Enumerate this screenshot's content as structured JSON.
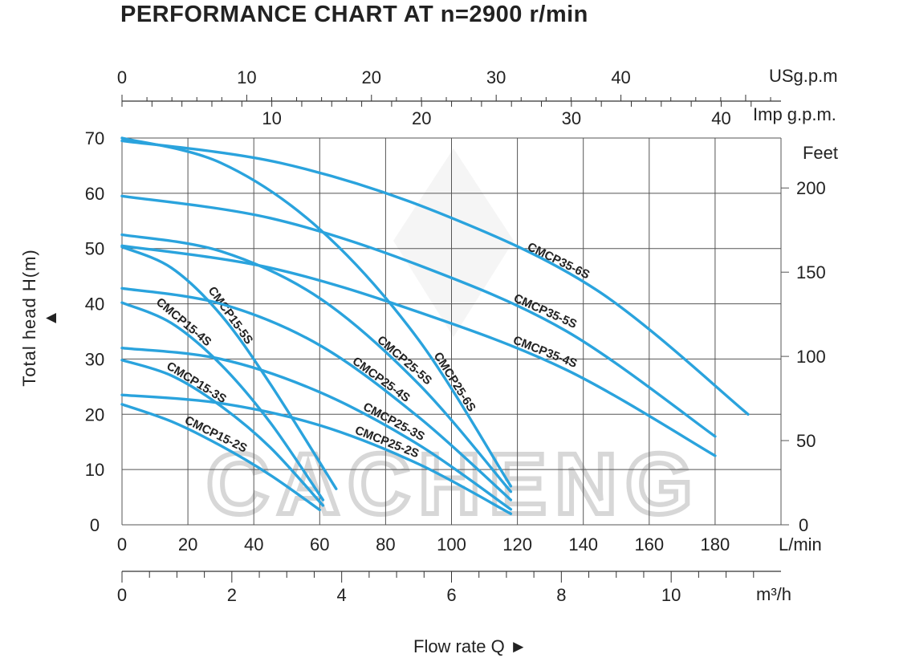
{
  "chart_data": {
    "type": "line",
    "title": "PERFORMANCE CHART AT n=2900 r/min",
    "xlabel": "Flow rate  Q",
    "ylabel": "Total  head H(m)",
    "x_unit": "L/min",
    "xlim": [
      0,
      200
    ],
    "ylim": [
      0,
      70
    ],
    "x_ticks": [
      0,
      20,
      40,
      60,
      80,
      100,
      120,
      140,
      160,
      180
    ],
    "y_ticks": [
      0,
      10,
      20,
      30,
      40,
      50,
      60,
      70
    ],
    "grid": true,
    "secondary_axes": {
      "feet": {
        "label": "Feet",
        "ticks": [
          0,
          50,
          100,
          150,
          200
        ]
      },
      "m3h": {
        "label": "m³/h",
        "ticks": [
          0,
          2,
          4,
          6,
          8,
          10
        ]
      },
      "usgpm": {
        "label": "USg.p.m",
        "ticks": [
          0,
          10,
          20,
          30,
          40
        ]
      },
      "impgpm": {
        "label": "Imp g.p.m.",
        "ticks": [
          10,
          20,
          30,
          40
        ]
      }
    },
    "watermark": "CACHENG",
    "series": [
      {
        "name": "CMCP15-2S",
        "x": [
          0,
          15,
          30,
          45,
          60
        ],
        "y": [
          21.8,
          18.7,
          14.3,
          9,
          2.7
        ]
      },
      {
        "name": "CMCP15-3S",
        "x": [
          0,
          15,
          30,
          45,
          61
        ],
        "y": [
          29.8,
          27,
          21.5,
          14,
          3.5
        ]
      },
      {
        "name": "CMCP15-4S",
        "x": [
          0,
          15,
          30,
          45,
          61
        ],
        "y": [
          40.2,
          36.5,
          29,
          18.5,
          4.5
        ]
      },
      {
        "name": "CMCP15-5S",
        "x": [
          0,
          15,
          30,
          45,
          65
        ],
        "y": [
          50.3,
          46.5,
          38,
          25.5,
          6.5
        ]
      },
      {
        "name": "CMCP25-2S",
        "x": [
          0,
          30,
          60,
          90,
          118
        ],
        "y": [
          23.5,
          22,
          18,
          11,
          2
        ]
      },
      {
        "name": "CMCP25-3S",
        "x": [
          0,
          30,
          60,
          90,
          118
        ],
        "y": [
          32,
          30,
          24,
          14.5,
          2.8
        ]
      },
      {
        "name": "CMCP25-4S",
        "x": [
          0,
          30,
          60,
          90,
          118
        ],
        "y": [
          42.8,
          40,
          32.5,
          19.5,
          4.5
        ]
      },
      {
        "name": "CMCP25-5S",
        "x": [
          0,
          30,
          60,
          90,
          118
        ],
        "y": [
          52.5,
          49.5,
          41,
          25.5,
          6
        ]
      },
      {
        "name": "CMCP25-6S",
        "x": [
          0,
          30,
          60,
          90,
          118
        ],
        "y": [
          70,
          65.5,
          53.5,
          33.5,
          7
        ]
      },
      {
        "name": "CMCP35-4S",
        "x": [
          0,
          45,
          90,
          135,
          180
        ],
        "y": [
          50.5,
          46.5,
          38.5,
          28,
          12.5
        ]
      },
      {
        "name": "CMCP35-5S",
        "x": [
          0,
          45,
          90,
          135,
          180
        ],
        "y": [
          59.5,
          55.5,
          47,
          35,
          16
        ]
      },
      {
        "name": "CMCP35-6S",
        "x": [
          0,
          48,
          96,
          144,
          190
        ],
        "y": [
          69.5,
          65.5,
          56.5,
          42.5,
          20
        ]
      }
    ],
    "colors": {
      "curve": "#2aa3dd",
      "grid": "#555555",
      "watermark": "#d7d7d7"
    }
  }
}
